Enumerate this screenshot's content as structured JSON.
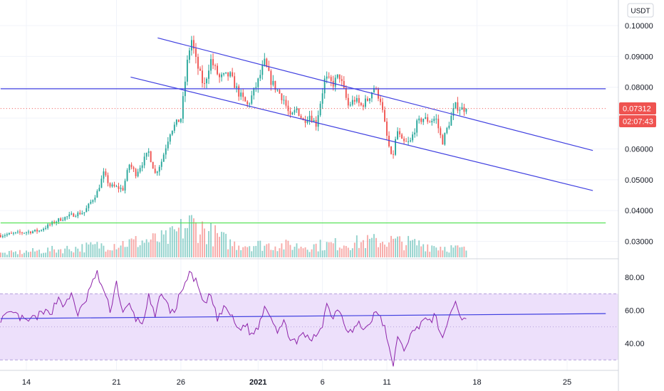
{
  "axis": {
    "currency_label": "USDT",
    "price_ticks": [
      "0.10000",
      "0.09000",
      "0.08000",
      "0.06000",
      "0.05000",
      "0.04000",
      "0.03000"
    ],
    "rsi_ticks": [
      "80.00",
      "60.00",
      "40.00"
    ],
    "x_ticks": [
      {
        "label": "14",
        "day": 14
      },
      {
        "label": "21",
        "day": 21
      },
      {
        "label": "26",
        "day": 26
      },
      {
        "label": "2021",
        "day": 32,
        "bold": true
      },
      {
        "label": "6",
        "day": 37
      },
      {
        "label": "11",
        "day": 42
      },
      {
        "label": "18",
        "day": 49
      },
      {
        "label": "25",
        "day": 56
      }
    ]
  },
  "price_badge": {
    "value": "0.07312",
    "countdown": "02:07:43",
    "color": "#ef5350"
  },
  "colors": {
    "up": "#26a69a",
    "down": "#ef5350",
    "trend": "#3f3fe0",
    "support": "#4ce04c",
    "rsi_line": "#8e24aa",
    "rsi_band": "#ede0fb",
    "rsi_dash": "#b39ddb"
  },
  "chart_data": {
    "type": "candlestick",
    "symbol_quote": "USDT",
    "x_unit": "day (Dec 2020 → Jan 2021, day 32 = Jan 1 2021)",
    "y_range_price": [
      0.025,
      0.105
    ],
    "y_range_rsi": [
      25,
      90
    ],
    "bars_per_day": 6,
    "x_start_day": 12.0,
    "close_anchors": [
      [
        12.0,
        0.032
      ],
      [
        13.5,
        0.0328
      ],
      [
        15.0,
        0.0335
      ],
      [
        16.5,
        0.037
      ],
      [
        17.5,
        0.0385
      ],
      [
        18.5,
        0.0395
      ],
      [
        19.5,
        0.046
      ],
      [
        20.0,
        0.052
      ],
      [
        20.5,
        0.048
      ],
      [
        21.5,
        0.047
      ],
      [
        22.0,
        0.055
      ],
      [
        22.5,
        0.052
      ],
      [
        23.5,
        0.059
      ],
      [
        24.0,
        0.052
      ],
      [
        24.5,
        0.056
      ],
      [
        25.2,
        0.066
      ],
      [
        26.0,
        0.07
      ],
      [
        26.5,
        0.088
      ],
      [
        26.8,
        0.096
      ],
      [
        27.2,
        0.088
      ],
      [
        27.8,
        0.08
      ],
      [
        28.3,
        0.089
      ],
      [
        29.0,
        0.083
      ],
      [
        29.8,
        0.084
      ],
      [
        30.5,
        0.078
      ],
      [
        31.2,
        0.074
      ],
      [
        32.0,
        0.082
      ],
      [
        32.5,
        0.088
      ],
      [
        33.0,
        0.082
      ],
      [
        33.5,
        0.079
      ],
      [
        34.0,
        0.076
      ],
      [
        34.5,
        0.07
      ],
      [
        35.0,
        0.073
      ],
      [
        35.5,
        0.069
      ],
      [
        36.0,
        0.071
      ],
      [
        36.5,
        0.068
      ],
      [
        37.2,
        0.083
      ],
      [
        37.8,
        0.081
      ],
      [
        38.3,
        0.084
      ],
      [
        39.0,
        0.074
      ],
      [
        39.5,
        0.076
      ],
      [
        40.0,
        0.074
      ],
      [
        40.5,
        0.076
      ],
      [
        41.0,
        0.08
      ],
      [
        41.5,
        0.076
      ],
      [
        42.0,
        0.064
      ],
      [
        42.4,
        0.056
      ],
      [
        42.8,
        0.066
      ],
      [
        43.2,
        0.062
      ],
      [
        43.8,
        0.062
      ],
      [
        44.3,
        0.068
      ],
      [
        44.8,
        0.07
      ],
      [
        45.3,
        0.069
      ],
      [
        45.8,
        0.07
      ],
      [
        46.3,
        0.062
      ],
      [
        46.8,
        0.068
      ],
      [
        47.3,
        0.074
      ],
      [
        47.8,
        0.073
      ],
      [
        48.3,
        0.0731
      ]
    ],
    "rsi_anchors": [
      [
        12.0,
        55
      ],
      [
        13.0,
        58
      ],
      [
        14.0,
        53
      ],
      [
        15.0,
        57
      ],
      [
        16.0,
        60
      ],
      [
        16.5,
        68
      ],
      [
        17.0,
        62
      ],
      [
        17.5,
        70
      ],
      [
        18.0,
        58
      ],
      [
        18.5,
        63
      ],
      [
        19.0,
        75
      ],
      [
        19.5,
        82
      ],
      [
        20.0,
        72
      ],
      [
        20.5,
        60
      ],
      [
        21.0,
        77
      ],
      [
        21.5,
        58
      ],
      [
        22.0,
        63
      ],
      [
        22.5,
        55
      ],
      [
        23.0,
        52
      ],
      [
        23.5,
        68
      ],
      [
        24.0,
        55
      ],
      [
        24.5,
        72
      ],
      [
        25.0,
        62
      ],
      [
        25.5,
        58
      ],
      [
        26.0,
        72
      ],
      [
        26.8,
        83
      ],
      [
        27.3,
        75
      ],
      [
        27.8,
        62
      ],
      [
        28.3,
        70
      ],
      [
        28.8,
        55
      ],
      [
        29.5,
        62
      ],
      [
        30.0,
        55
      ],
      [
        30.5,
        48
      ],
      [
        31.0,
        52
      ],
      [
        31.5,
        45
      ],
      [
        32.0,
        50
      ],
      [
        32.5,
        63
      ],
      [
        33.0,
        57
      ],
      [
        33.5,
        48
      ],
      [
        34.0,
        52
      ],
      [
        34.5,
        44
      ],
      [
        35.0,
        39
      ],
      [
        35.5,
        47
      ],
      [
        36.0,
        41
      ],
      [
        36.5,
        45
      ],
      [
        37.0,
        52
      ],
      [
        37.3,
        64
      ],
      [
        37.8,
        56
      ],
      [
        38.3,
        62
      ],
      [
        38.8,
        50
      ],
      [
        39.3,
        47
      ],
      [
        39.8,
        52
      ],
      [
        40.3,
        48
      ],
      [
        40.8,
        55
      ],
      [
        41.3,
        59
      ],
      [
        41.8,
        50
      ],
      [
        42.2,
        35
      ],
      [
        42.5,
        28
      ],
      [
        42.8,
        43
      ],
      [
        43.3,
        36
      ],
      [
        43.8,
        45
      ],
      [
        44.3,
        48
      ],
      [
        44.8,
        56
      ],
      [
        45.3,
        52
      ],
      [
        45.8,
        58
      ],
      [
        46.3,
        40
      ],
      [
        46.8,
        56
      ],
      [
        47.3,
        65
      ],
      [
        47.8,
        55
      ],
      [
        48.3,
        57
      ]
    ],
    "volume_anchors": [
      [
        12,
        0.1
      ],
      [
        18,
        0.25
      ],
      [
        25,
        0.5
      ],
      [
        26.8,
        0.9
      ],
      [
        30,
        0.35
      ],
      [
        36,
        0.3
      ],
      [
        42,
        0.45
      ],
      [
        48.3,
        0.2
      ]
    ],
    "lines": [
      {
        "name": "upper-channel",
        "from": [
          24.2,
          0.096
        ],
        "to": [
          58.0,
          0.0595
        ]
      },
      {
        "name": "lower-channel",
        "from": [
          22.1,
          0.0833
        ],
        "to": [
          58.0,
          0.0465
        ]
      },
      {
        "name": "resistance",
        "from": [
          12.0,
          0.0795
        ],
        "to": [
          59.0,
          0.0795
        ]
      },
      {
        "name": "support",
        "from": [
          12.0,
          0.036
        ],
        "to": [
          59.0,
          0.036
        ]
      },
      {
        "name": "current-price",
        "from": [
          12.0,
          0.07312
        ],
        "to": [
          59.0,
          0.07312
        ],
        "dotted": true
      }
    ],
    "rsi_trendline": {
      "from": [
        12.0,
        55
      ],
      "to": [
        59.0,
        58
      ]
    },
    "rsi_band": [
      30,
      70
    ],
    "rsi_mid": 50
  }
}
